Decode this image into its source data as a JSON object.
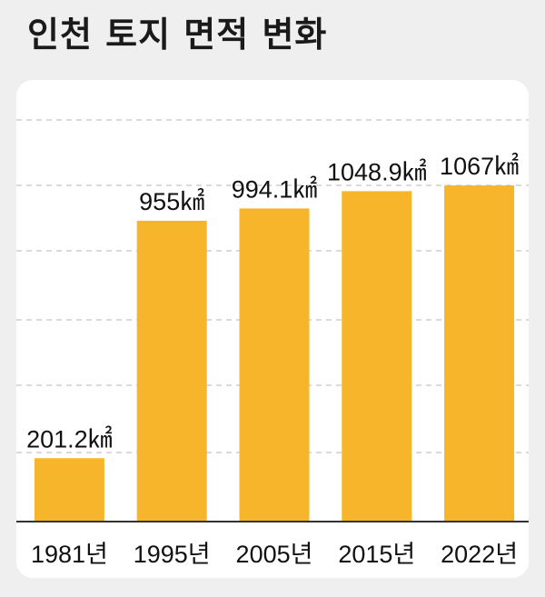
{
  "title": "인천 토지 면적 변화",
  "chart_data": {
    "type": "bar",
    "title": "인천 토지 면적 변화",
    "categories": [
      "1981년",
      "1995년",
      "2005년",
      "2015년",
      "2022년"
    ],
    "values": [
      201.2,
      955,
      994.1,
      1048.9,
      1067
    ],
    "value_labels": [
      "201.2㎢",
      "955㎢",
      "994.1㎢",
      "1048.9㎢",
      "1067㎢"
    ],
    "ylim": [
      0,
      1350
    ],
    "grid": true,
    "bar_color": "#f7b52c",
    "grid_color": "#b5b5b5",
    "baseline_color": "#333333"
  }
}
